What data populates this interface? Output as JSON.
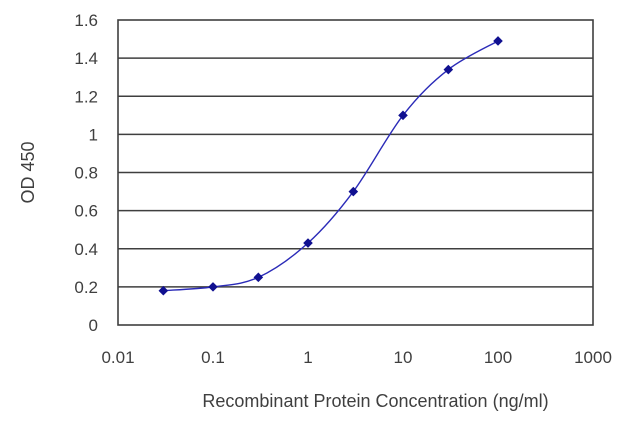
{
  "chart_data": {
    "type": "scatter",
    "x_scale": "log",
    "xlim": [
      0.01,
      1000
    ],
    "ylim": [
      0,
      1.6
    ],
    "xticks": [
      "0.01",
      "0.1",
      "1",
      "10",
      "100",
      "1000"
    ],
    "yticks": [
      "0",
      "0.2",
      "0.4",
      "0.6",
      "0.8",
      "1",
      "1.2",
      "1.4",
      "1.6"
    ],
    "xlabel": "Recombinant Protein Concentration (ng/ml)",
    "ylabel": "OD 450",
    "grid": "horizontal",
    "series": [
      {
        "x": [
          0.03,
          0.1,
          0.3,
          1,
          3,
          10,
          30,
          100
        ],
        "y": [
          0.18,
          0.2,
          0.25,
          0.43,
          0.7,
          1.1,
          1.34,
          1.49
        ],
        "fit_curve": true
      }
    ],
    "colors": {
      "line": "#2b2bb8",
      "marker": "#101090",
      "axis": "#3f3f3f"
    }
  }
}
